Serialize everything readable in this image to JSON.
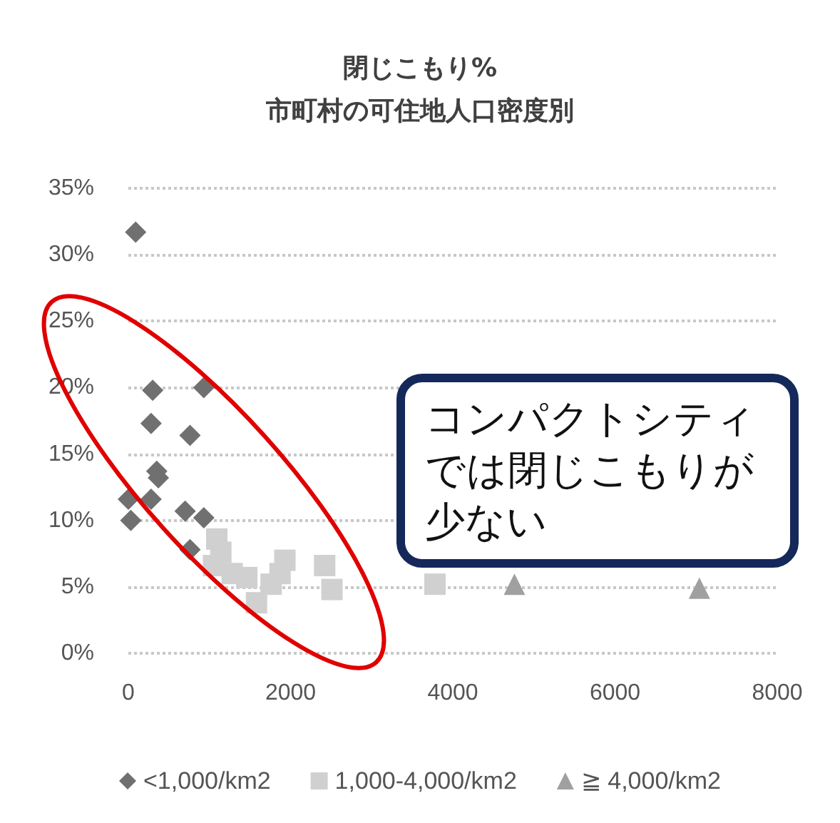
{
  "chart_data": {
    "type": "scatter",
    "title": "閉じこもり%\n市町村の可住地人口密度別",
    "xlim": [
      0,
      8000
    ],
    "xticks": [
      0,
      2000,
      4000,
      6000,
      8000
    ],
    "ylim": [
      0,
      35
    ],
    "yticks": [
      {
        "value": 0,
        "label": "0%"
      },
      {
        "value": 5,
        "label": "5%"
      },
      {
        "value": 10,
        "label": "10%"
      },
      {
        "value": 15,
        "label": "15%"
      },
      {
        "value": 20,
        "label": "20%"
      },
      {
        "value": 25,
        "label": "25%"
      },
      {
        "value": 30,
        "label": "30%"
      },
      {
        "value": 35,
        "label": "35%"
      }
    ],
    "grid": "y",
    "legend": "bottom",
    "series": [
      {
        "name": "<1,000/km2",
        "color": "#707070",
        "marker": "diamond",
        "x": [
          90,
          300,
          930,
          280,
          760,
          350,
          370,
          0,
          280,
          30,
          700,
          930,
          760
        ],
        "values": [
          31.7,
          19.8,
          20.0,
          17.3,
          16.4,
          13.7,
          13.2,
          11.6,
          11.6,
          10.0,
          10.7,
          10.2,
          7.8
        ]
      },
      {
        "name": "1,000-4,000/km2",
        "color": "#d0d0d0",
        "marker": "square",
        "x": [
          1090,
          1140,
          1050,
          1280,
          1460,
          1580,
          1760,
          1930,
          1870,
          2420,
          2510,
          3780
        ],
        "values": [
          8.6,
          7.6,
          6.6,
          6.0,
          5.7,
          3.8,
          5.2,
          7.0,
          6.0,
          6.6,
          4.8,
          5.2
        ]
      },
      {
        "name": "≧ 4,000/km2",
        "color": "#a0a0a0",
        "marker": "triangle",
        "x": [
          4760,
          7040
        ],
        "values": [
          5.2,
          4.9
        ]
      }
    ],
    "annotations": [
      "コンパクトシティでは閉じこもりが少ない"
    ]
  }
}
